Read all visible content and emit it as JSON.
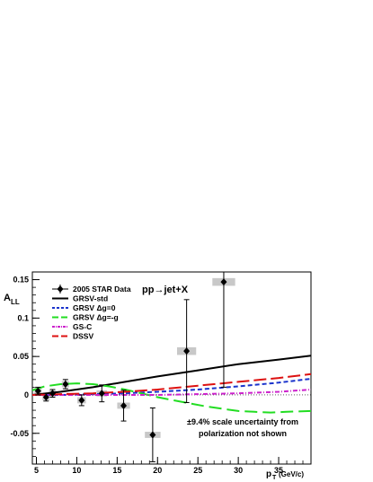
{
  "chart_data": {
    "type": "scatter",
    "process_label": "pp→jet+X",
    "ylabel": "A",
    "ylabel_sub": "LL",
    "xlabel": "p",
    "xlabel_sub": "T",
    "xlabel_unit": "(GeV/c)",
    "xlim": [
      4.5,
      39
    ],
    "ylim": [
      -0.09,
      0.16
    ],
    "x_ticks": [
      5,
      10,
      15,
      20,
      25,
      30,
      35
    ],
    "y_ticks": [
      {
        "v": 0.15,
        "label": "0.15"
      },
      {
        "v": 0.1,
        "label": "0.1"
      },
      {
        "v": 0.05,
        "label": "0.05"
      },
      {
        "v": 0,
        "label": "0"
      },
      {
        "v": -0.05,
        "label": "-0.05"
      }
    ],
    "annotation": [
      "±9.4% scale uncertainty from",
      "polarization not shown"
    ],
    "data_series": {
      "name": "2005 STAR Data",
      "points": [
        {
          "x": 5.2,
          "y": 0.005,
          "err": 0.005,
          "sys": 0.005
        },
        {
          "x": 6.2,
          "y": -0.003,
          "err": 0.005,
          "sys": 0.004
        },
        {
          "x": 7.0,
          "y": 0.002,
          "err": 0.005,
          "sys": 0.004
        },
        {
          "x": 8.6,
          "y": 0.014,
          "err": 0.006,
          "sys": 0.004
        },
        {
          "x": 10.6,
          "y": -0.007,
          "err": 0.007,
          "sys": 0.004
        },
        {
          "x": 13.1,
          "y": 0.002,
          "err": 0.011,
          "sys": 0.004
        },
        {
          "x": 15.8,
          "y": -0.014,
          "err": 0.02,
          "sys": 0.004
        },
        {
          "x": 19.4,
          "y": -0.052,
          "err": 0.035,
          "sys": 0.004
        },
        {
          "x": 23.6,
          "y": 0.057,
          "err": 0.067,
          "sys": 0.005
        },
        {
          "x": 28.2,
          "y": 0.147,
          "err": 0.137,
          "sys": 0.005
        }
      ]
    },
    "curves": [
      {
        "name": "GRSV-std",
        "color": "#000000",
        "dash": "",
        "x": [
          4.5,
          8,
          12,
          16,
          20,
          25,
          30,
          35,
          39
        ],
        "y": [
          0.0,
          0.004,
          0.01,
          0.017,
          0.024,
          0.032,
          0.04,
          0.046,
          0.051
        ]
      },
      {
        "name": "GRSV Δg=0",
        "color": "#1a33cc",
        "dash": "5,3",
        "x": [
          4.5,
          8,
          12,
          16,
          20,
          25,
          30,
          35,
          39
        ],
        "y": [
          0.0,
          0.0,
          0.001,
          0.002,
          0.004,
          0.007,
          0.011,
          0.016,
          0.021
        ]
      },
      {
        "name": "GRSV Δg=-g",
        "color": "#22dd22",
        "dash": "14,6",
        "x": [
          4.5,
          6,
          8,
          10,
          12,
          14,
          16,
          18,
          20,
          22,
          24,
          26,
          28,
          30,
          32,
          34,
          36,
          39
        ],
        "y": [
          0.006,
          0.011,
          0.014,
          0.015,
          0.014,
          0.011,
          0.007,
          0.002,
          -0.003,
          -0.007,
          -0.011,
          -0.015,
          -0.018,
          -0.021,
          -0.022,
          -0.023,
          -0.022,
          -0.021
        ]
      },
      {
        "name": "GS-C",
        "color": "#cc22cc",
        "dash": "5,2,1,2",
        "x": [
          4.5,
          8,
          12,
          16,
          20,
          25,
          30,
          35,
          39
        ],
        "y": [
          0.0,
          0.0,
          0.0,
          0.0,
          0.0,
          0.001,
          0.002,
          0.004,
          0.007
        ]
      },
      {
        "name": "DSSV",
        "color": "#dd1111",
        "dash": "14,5",
        "x": [
          4.5,
          8,
          12,
          16,
          20,
          25,
          30,
          35,
          39
        ],
        "y": [
          0.0,
          0.001,
          0.002,
          0.004,
          0.007,
          0.012,
          0.017,
          0.022,
          0.027
        ]
      }
    ]
  }
}
